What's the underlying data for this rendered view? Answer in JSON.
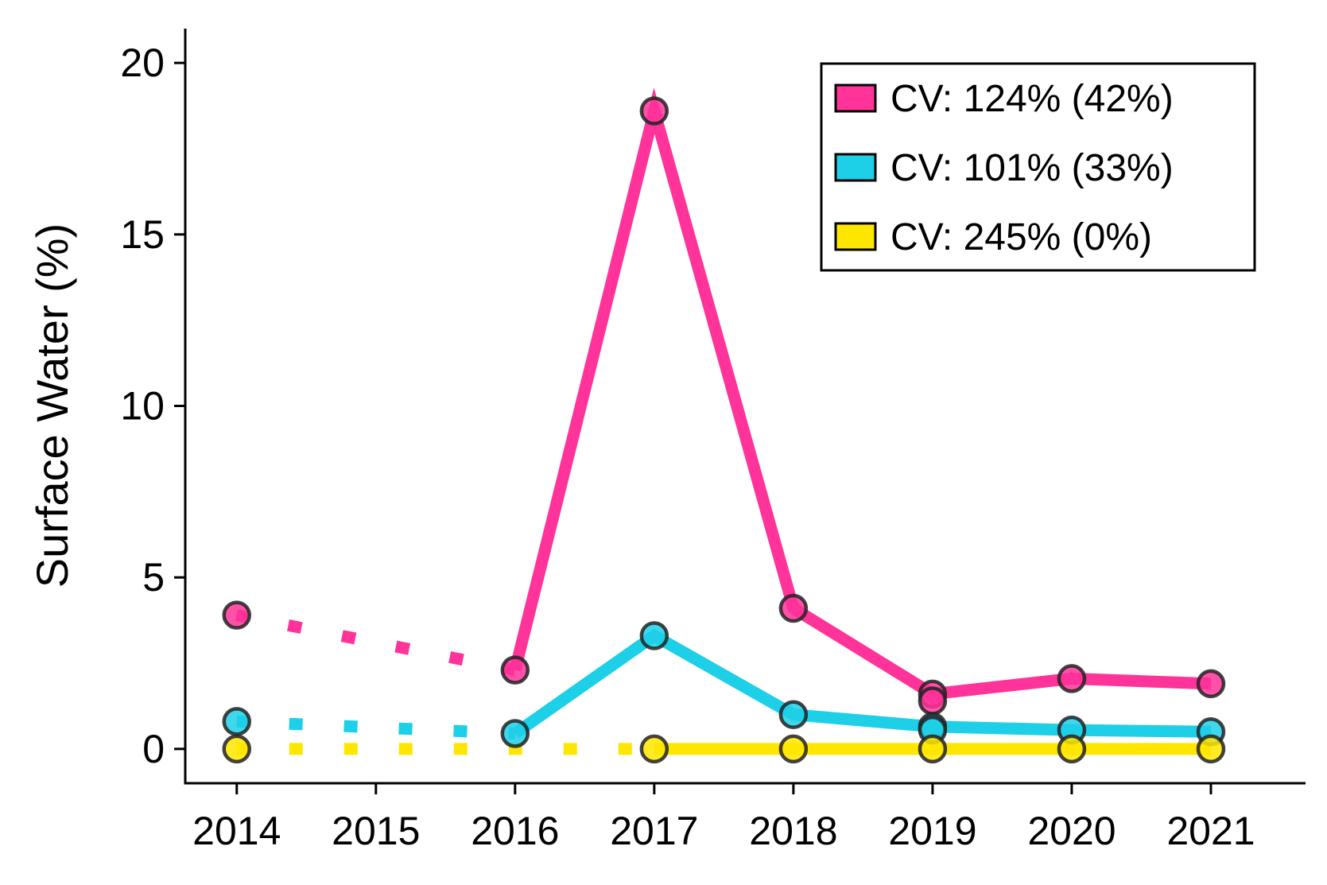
{
  "chart_data": {
    "type": "line",
    "title": "",
    "xlabel": "",
    "ylabel": "Surface Water (%)",
    "x": [
      "2014",
      "2015",
      "2016",
      "2017",
      "2018",
      "2019",
      "2020",
      "2021"
    ],
    "xlim": [
      2013.63,
      2021.68
    ],
    "ylim": [
      -1.0,
      21.0
    ],
    "yticks": [
      0,
      5,
      10,
      15,
      20
    ],
    "grid": false,
    "legend_position": "top-right",
    "series": [
      {
        "name": "CV: 124% (42%)",
        "color": "#ff3399",
        "points": [
          {
            "x": 2014,
            "y": 3.9
          },
          {
            "x": 2016,
            "y": 2.3
          },
          {
            "x": 2017,
            "y": 18.6
          },
          {
            "x": 2018,
            "y": 4.1
          },
          {
            "x": 2019,
            "y": 1.6
          },
          {
            "x": 2020,
            "y": 2.05
          },
          {
            "x": 2021,
            "y": 1.9
          }
        ],
        "dotted_segment": [
          2014,
          2016
        ],
        "extra_points": [
          {
            "x": 2019,
            "y": 1.4
          }
        ]
      },
      {
        "name": "CV: 101% (33%)",
        "color": "#1ecfe8",
        "points": [
          {
            "x": 2014,
            "y": 0.8
          },
          {
            "x": 2016,
            "y": 0.45
          },
          {
            "x": 2017,
            "y": 3.3
          },
          {
            "x": 2018,
            "y": 1.0
          },
          {
            "x": 2019,
            "y": 0.65
          },
          {
            "x": 2020,
            "y": 0.55
          },
          {
            "x": 2021,
            "y": 0.5
          }
        ],
        "dotted_segment": [
          2014,
          2016
        ],
        "extra_points": [
          {
            "x": 2019,
            "y": 0.55
          }
        ]
      },
      {
        "name": "CV: 245% (0%)",
        "color": "#ffe600",
        "points": [
          {
            "x": 2014,
            "y": 0.0
          },
          {
            "x": 2017,
            "y": 0.0
          },
          {
            "x": 2018,
            "y": 0.0
          },
          {
            "x": 2019,
            "y": 0.0
          },
          {
            "x": 2020,
            "y": 0.0
          },
          {
            "x": 2021,
            "y": 0.0
          }
        ],
        "dotted_segment": [
          2014,
          2017
        ],
        "extra_points": []
      }
    ]
  }
}
